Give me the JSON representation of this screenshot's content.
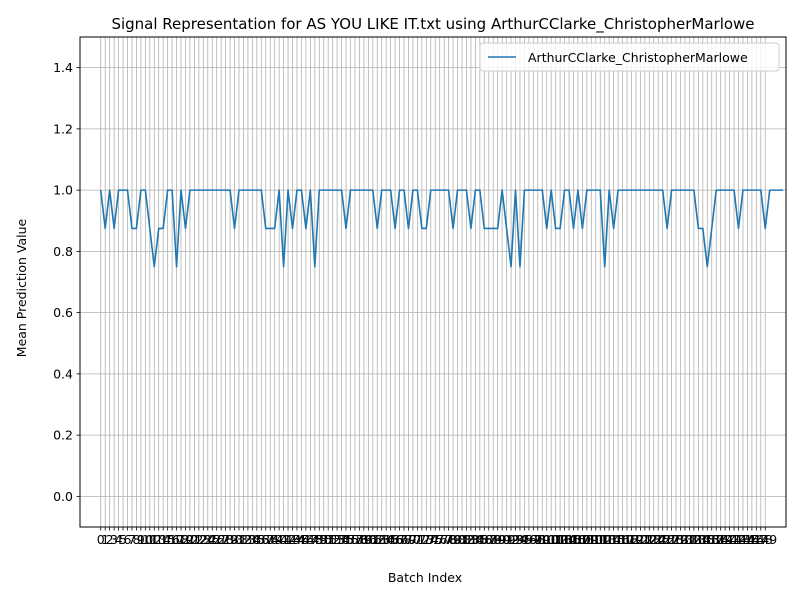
{
  "chart_data": {
    "type": "line",
    "title": "Signal Representation for AS YOU LIKE IT.txt using ArthurCClarke_ChristopherMarlowe",
    "xlabel": "Batch Index",
    "ylabel": "Mean Prediction Value",
    "xlim": [
      -4.65,
      153.65
    ],
    "ylim": [
      -0.1,
      1.5
    ],
    "yticks": [
      0.0,
      0.2,
      0.4,
      0.6,
      0.8,
      1.0,
      1.2,
      1.4
    ],
    "ytick_labels": [
      "0.0",
      "0.2",
      "0.4",
      "0.6",
      "0.8",
      "1.0",
      "1.2",
      "1.4"
    ],
    "xticks_start": 0,
    "xticks_end": 149,
    "grid": true,
    "legend_position": "top-right",
    "series": [
      {
        "name": "ArthurCClarke_ChristopherMarlowe",
        "color": "#1f77b4",
        "x_start": 0,
        "values": [
          1.0,
          0.875,
          1.0,
          0.875,
          1.0,
          1.0,
          1.0,
          0.875,
          0.875,
          1.0,
          1.0,
          0.875,
          0.75,
          0.875,
          0.875,
          1.0,
          1.0,
          0.75,
          1.0,
          0.875,
          1.0,
          1.0,
          1.0,
          1.0,
          1.0,
          1.0,
          1.0,
          1.0,
          1.0,
          1.0,
          0.875,
          1.0,
          1.0,
          1.0,
          1.0,
          1.0,
          1.0,
          0.875,
          0.875,
          0.875,
          1.0,
          0.75,
          1.0,
          0.875,
          1.0,
          1.0,
          0.875,
          1.0,
          0.75,
          1.0,
          1.0,
          1.0,
          1.0,
          1.0,
          1.0,
          0.875,
          1.0,
          1.0,
          1.0,
          1.0,
          1.0,
          1.0,
          0.875,
          1.0,
          1.0,
          1.0,
          0.875,
          1.0,
          1.0,
          0.875,
          1.0,
          1.0,
          0.875,
          0.875,
          1.0,
          1.0,
          1.0,
          1.0,
          1.0,
          0.875,
          1.0,
          1.0,
          1.0,
          0.875,
          1.0,
          1.0,
          0.875,
          0.875,
          0.875,
          0.875,
          1.0,
          0.875,
          0.75,
          1.0,
          0.75,
          1.0,
          1.0,
          1.0,
          1.0,
          1.0,
          0.875,
          1.0,
          0.875,
          0.875,
          1.0,
          1.0,
          0.875,
          1.0,
          0.875,
          1.0,
          1.0,
          1.0,
          1.0,
          0.75,
          1.0,
          0.875,
          1.0,
          1.0,
          1.0,
          1.0,
          1.0,
          1.0,
          1.0,
          1.0,
          1.0,
          1.0,
          1.0,
          0.875,
          1.0,
          1.0,
          1.0,
          1.0,
          1.0,
          1.0,
          0.875,
          0.875,
          0.75,
          0.875,
          1.0,
          1.0,
          1.0,
          1.0,
          1.0,
          0.875,
          1.0,
          1.0,
          1.0,
          1.0,
          1.0,
          0.875,
          1.0,
          1.0,
          1.0,
          1.0
        ]
      }
    ]
  }
}
